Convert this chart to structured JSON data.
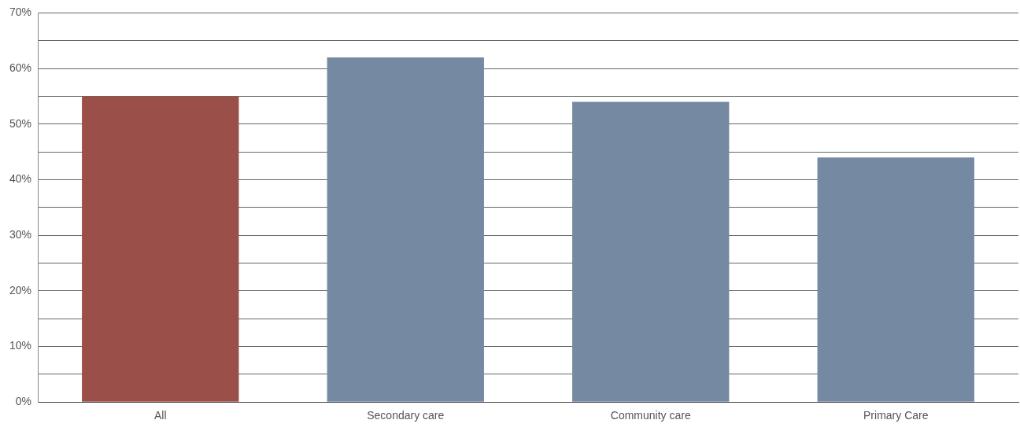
{
  "chart_data": {
    "type": "bar",
    "categories": [
      "All",
      "Secondary care",
      "Community care",
      "Primary Care"
    ],
    "values": [
      55,
      62,
      54,
      44
    ],
    "colors": [
      "#9a5048",
      "#7589a3",
      "#7589a3",
      "#7589a3"
    ],
    "ylim": [
      0,
      70
    ],
    "yticks": [
      {
        "value": 0,
        "label": "0%"
      },
      {
        "value": 5,
        "label": null
      },
      {
        "value": 10,
        "label": "10%"
      },
      {
        "value": 15,
        "label": null
      },
      {
        "value": 20,
        "label": "20%"
      },
      {
        "value": 25,
        "label": null
      },
      {
        "value": 30,
        "label": "30%"
      },
      {
        "value": 35,
        "label": null
      },
      {
        "value": 40,
        "label": "40%"
      },
      {
        "value": 45,
        "label": null
      },
      {
        "value": 50,
        "label": "50%"
      },
      {
        "value": 55,
        "label": null
      },
      {
        "value": 60,
        "label": "60%"
      },
      {
        "value": 65,
        "label": null
      },
      {
        "value": 70,
        "label": "70%"
      }
    ],
    "grid": "y",
    "legend": false
  }
}
